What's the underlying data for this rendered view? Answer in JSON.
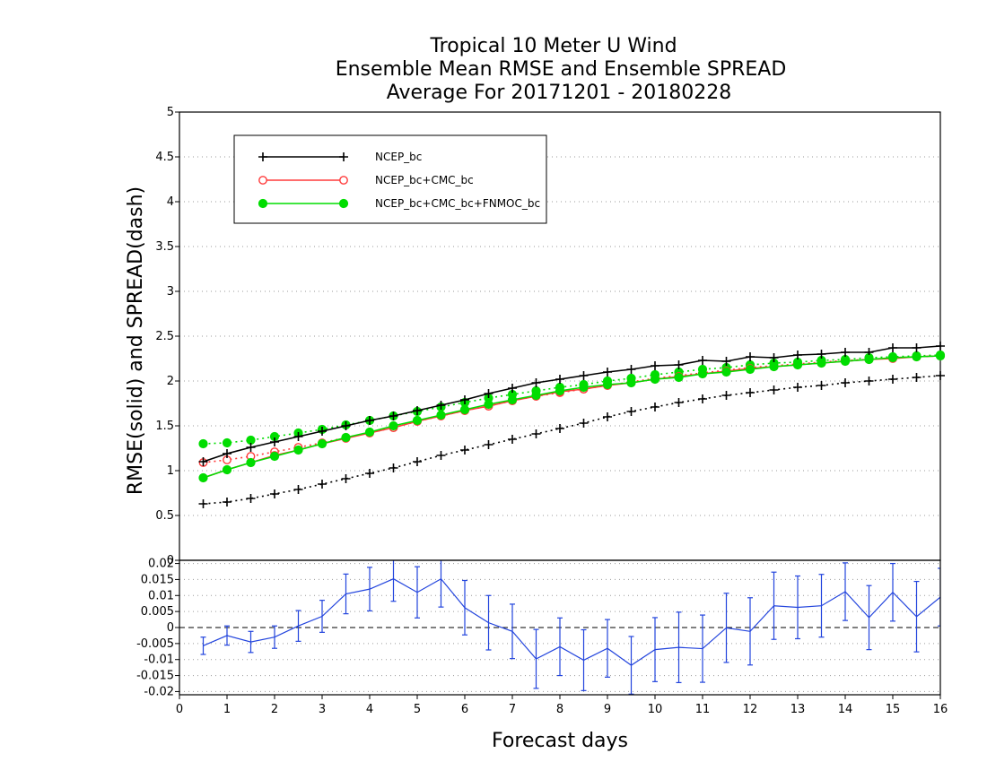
{
  "chart_data": {
    "type": "line",
    "title_lines": [
      "Tropical 10 Meter U Wind",
      "Ensemble Mean RMSE and Ensemble SPREAD",
      "Average For 20171201 - 20180228"
    ],
    "xlabel": "Forecast days",
    "ylabel": "RMSE(solid) and SPREAD(dash)",
    "xlim": [
      0,
      16
    ],
    "x_ticks": [
      "0",
      "1",
      "2",
      "3",
      "4",
      "5",
      "6",
      "7",
      "8",
      "9",
      "10",
      "11",
      "12",
      "13",
      "14",
      "15",
      "16"
    ],
    "top_panel": {
      "ylim": [
        0,
        5
      ],
      "y_ticks": [
        "0",
        "0.5",
        "1",
        "1.5",
        "2",
        "2.5",
        "3",
        "3.5",
        "4",
        "4.5",
        "5"
      ],
      "grid": true,
      "legend_placement": "top-left",
      "x": [
        0.5,
        1,
        1.5,
        2,
        2.5,
        3,
        3.5,
        4,
        4.5,
        5,
        5.5,
        6,
        6.5,
        7,
        7.5,
        8,
        8.5,
        9,
        9.5,
        10,
        10.5,
        11,
        11.5,
        12,
        12.5,
        13,
        13.5,
        14,
        14.5,
        15,
        15.5,
        16
      ],
      "series": [
        {
          "name": "NCEP_bc",
          "color": "#000000",
          "marker": "plus",
          "rmse": [
            1.1,
            1.19,
            1.26,
            1.32,
            1.38,
            1.44,
            1.5,
            1.56,
            1.61,
            1.67,
            1.73,
            1.79,
            1.86,
            1.92,
            1.98,
            2.02,
            2.06,
            2.1,
            2.13,
            2.17,
            2.18,
            2.23,
            2.22,
            2.27,
            2.26,
            2.29,
            2.3,
            2.32,
            2.32,
            2.37,
            2.37,
            2.39
          ],
          "spread": [
            0.63,
            0.65,
            0.69,
            0.74,
            0.79,
            0.85,
            0.91,
            0.97,
            1.03,
            1.1,
            1.17,
            1.23,
            1.29,
            1.35,
            1.41,
            1.47,
            1.53,
            1.6,
            1.66,
            1.71,
            1.76,
            1.8,
            1.84,
            1.87,
            1.9,
            1.93,
            1.95,
            1.98,
            2.0,
            2.02,
            2.04,
            2.06
          ]
        },
        {
          "name": "NCEP_bc+CMC_bc",
          "color": "#ff3b3b",
          "marker": "open-circle",
          "rmse": [
            0.92,
            1.01,
            1.09,
            1.17,
            1.23,
            1.3,
            1.36,
            1.42,
            1.48,
            1.55,
            1.61,
            1.67,
            1.72,
            1.78,
            1.83,
            1.88,
            1.91,
            1.95,
            1.98,
            2.02,
            2.05,
            2.08,
            2.11,
            2.14,
            2.16,
            2.18,
            2.2,
            2.22,
            2.24,
            2.25,
            2.27,
            2.28
          ],
          "spread": [
            1.09,
            1.12,
            1.16,
            1.21,
            1.26,
            1.31,
            1.37,
            1.42,
            1.48,
            1.55,
            1.61,
            1.67,
            1.72,
            1.78,
            1.83,
            1.87,
            1.91,
            1.95,
            1.99,
            2.03,
            2.06,
            2.09,
            2.12,
            2.15,
            2.17,
            2.19,
            2.21,
            2.23,
            2.24,
            2.26,
            2.27,
            2.28
          ]
        },
        {
          "name": "NCEP_bc+CMC_bc+FNMOC_bc",
          "color": "#00dd00",
          "marker": "filled-circle",
          "rmse": [
            0.92,
            1.01,
            1.09,
            1.16,
            1.23,
            1.3,
            1.37,
            1.43,
            1.5,
            1.56,
            1.62,
            1.68,
            1.74,
            1.79,
            1.84,
            1.89,
            1.93,
            1.96,
            1.98,
            2.02,
            2.04,
            2.08,
            2.1,
            2.13,
            2.16,
            2.18,
            2.2,
            2.22,
            2.24,
            2.26,
            2.27,
            2.28
          ],
          "spread": [
            1.3,
            1.31,
            1.34,
            1.38,
            1.42,
            1.46,
            1.51,
            1.56,
            1.61,
            1.66,
            1.71,
            1.76,
            1.81,
            1.85,
            1.89,
            1.93,
            1.96,
            2.0,
            2.03,
            2.07,
            2.1,
            2.13,
            2.15,
            2.18,
            2.2,
            2.21,
            2.23,
            2.24,
            2.26,
            2.27,
            2.28,
            2.29
          ]
        }
      ]
    },
    "bottom_panel": {
      "ylim": [
        -0.021,
        0.021
      ],
      "y_ticks": [
        "0.02",
        "0.015",
        "0.01",
        "0.005",
        "0",
        "-0.005",
        "-0.01",
        "-0.015",
        "-0.02"
      ],
      "y_tick_values": [
        0.02,
        0.015,
        0.01,
        0.005,
        0,
        -0.005,
        -0.01,
        -0.015,
        -0.02
      ],
      "grid": true,
      "color": "#2244dd",
      "x": [
        0.5,
        1,
        1.5,
        2,
        2.5,
        3,
        3.5,
        4,
        4.5,
        5,
        5.5,
        6,
        6.5,
        7,
        7.5,
        8,
        8.5,
        9,
        9.5,
        10,
        10.5,
        11,
        11.5,
        12,
        12.5,
        13,
        13.5,
        14,
        14.5,
        15,
        15.5,
        16
      ],
      "diff": [
        -0.0057,
        -0.0025,
        -0.0045,
        -0.003,
        0.0005,
        0.0035,
        0.0105,
        0.012,
        0.0152,
        0.011,
        0.0152,
        0.0062,
        0.0015,
        -0.0012,
        -0.0098,
        -0.006,
        -0.0102,
        -0.0065,
        -0.0118,
        -0.0069,
        -0.0062,
        -0.0066,
        -0.0001,
        -0.0012,
        0.0068,
        0.0063,
        0.0068,
        0.0112,
        0.0031,
        0.011,
        0.0034,
        0.0095
      ],
      "err": [
        0.0027,
        0.003,
        0.0033,
        0.0035,
        0.0048,
        0.005,
        0.0062,
        0.0068,
        0.007,
        0.008,
        0.0088,
        0.0085,
        0.0085,
        0.0085,
        0.0092,
        0.009,
        0.0095,
        0.009,
        0.009,
        0.01,
        0.011,
        0.0105,
        0.0108,
        0.0105,
        0.0105,
        0.0098,
        0.0098,
        0.009,
        0.01,
        0.009,
        0.011,
        0.009
      ],
      "baseline": 0
    }
  }
}
